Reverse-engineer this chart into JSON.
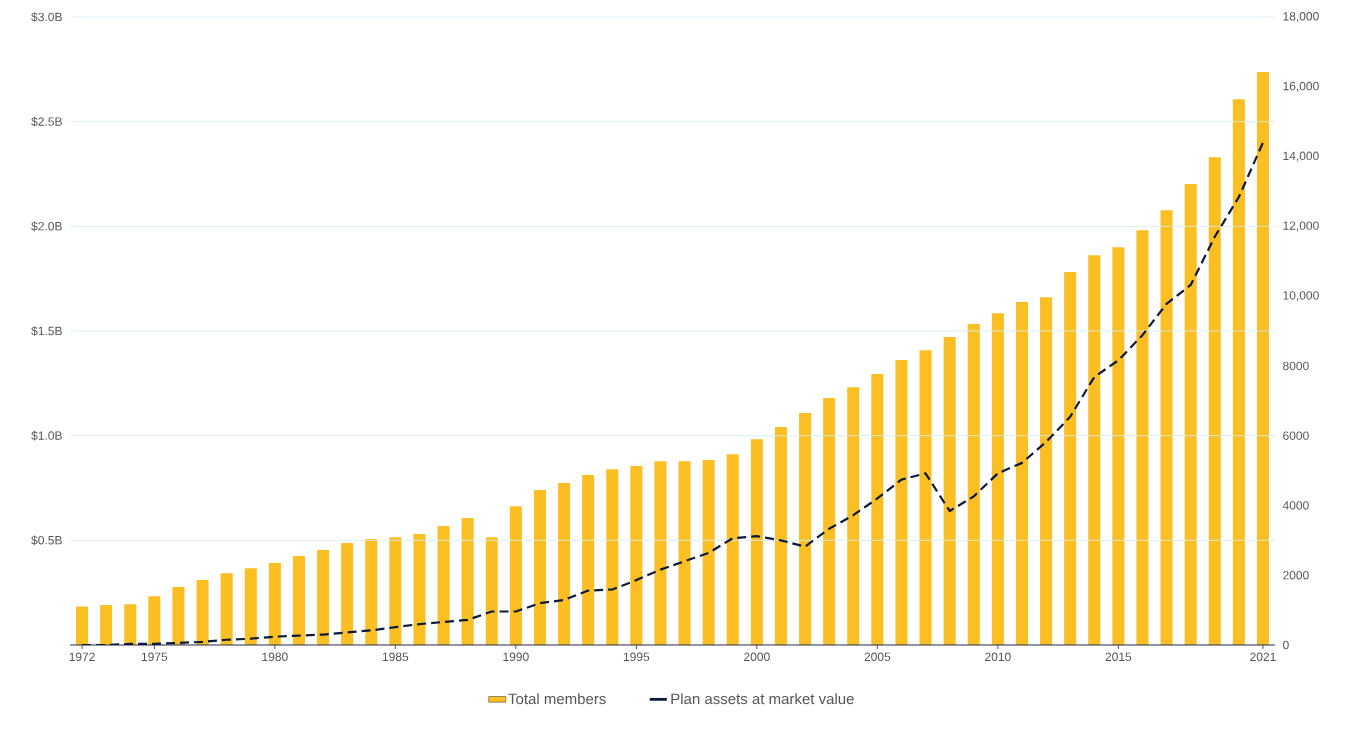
{
  "chart_data": {
    "type": "bar",
    "x": [
      1972,
      1973,
      1974,
      1975,
      1976,
      1977,
      1978,
      1979,
      1980,
      1981,
      1982,
      1983,
      1984,
      1985,
      1986,
      1987,
      1988,
      1989,
      1990,
      1991,
      1992,
      1993,
      1994,
      1995,
      1996,
      1997,
      1998,
      1999,
      2000,
      2001,
      2002,
      2003,
      2004,
      2005,
      2006,
      2007,
      2008,
      2009,
      2010,
      2011,
      2012,
      2013,
      2014,
      2015,
      2016,
      2017,
      2018,
      2019,
      2020,
      2021
    ],
    "series": [
      {
        "name": "Total members",
        "axis": "y2",
        "color": "#fbbf24",
        "values": [
          1100,
          1150,
          1170,
          1400,
          1660,
          1860,
          2060,
          2200,
          2350,
          2550,
          2720,
          2920,
          3040,
          3090,
          3180,
          3410,
          3640,
          3090,
          3980,
          4440,
          4640,
          4870,
          5040,
          5130,
          5270,
          5270,
          5300,
          5470,
          5900,
          6250,
          6650,
          7080,
          7390,
          7770,
          8170,
          8450,
          8830,
          9200,
          9510,
          9830,
          9970,
          10690,
          11170,
          11400,
          11890,
          12460,
          13210,
          13980,
          15640,
          16420
        ]
      },
      {
        "name": "Plan assets at market value",
        "type": "line",
        "line_style": "dashed",
        "color": "#0b1a3d",
        "values": [
          0.0,
          0.0,
          0.005,
          0.005,
          0.01,
          0.015,
          0.025,
          0.03,
          0.04,
          0.045,
          0.05,
          0.06,
          0.07,
          0.085,
          0.1,
          0.11,
          0.12,
          0.16,
          0.16,
          0.2,
          0.215,
          0.26,
          0.265,
          0.31,
          0.36,
          0.4,
          0.44,
          0.51,
          0.52,
          0.5,
          0.47,
          0.555,
          0.62,
          0.7,
          0.79,
          0.82,
          0.64,
          0.71,
          0.82,
          0.87,
          0.97,
          1.09,
          1.28,
          1.36,
          1.48,
          1.63,
          1.72,
          1.95,
          2.14,
          2.4
        ]
      }
    ],
    "xlim": [
      1971.5,
      2021.5
    ],
    "xticks": [
      1972,
      1975,
      1980,
      1985,
      1990,
      1995,
      2000,
      2005,
      2010,
      2015,
      2021
    ],
    "ylim": [
      0,
      3
    ],
    "yticks": [
      {
        "value": 0.5,
        "label": "$0.5B"
      },
      {
        "value": 1.0,
        "label": "$1.0B"
      },
      {
        "value": 1.5,
        "label": "$1.5B"
      },
      {
        "value": 2.0,
        "label": "$2.0B"
      },
      {
        "value": 2.5,
        "label": "$2.5B"
      },
      {
        "value": 3.0,
        "label": "$3.0B"
      }
    ],
    "y2lim": [
      0,
      18000
    ],
    "y2ticks": [
      0,
      2000,
      4000,
      6000,
      8000,
      {
        "value": 10000,
        "label": "10,000"
      },
      {
        "value": 12000,
        "label": "12,000"
      },
      {
        "value": 14000,
        "label": "14,000"
      },
      {
        "value": 16000,
        "label": "16,000"
      },
      {
        "value": 18000,
        "label": "18,000"
      }
    ],
    "grid": "y",
    "legend": "bottom",
    "marker": "none"
  }
}
